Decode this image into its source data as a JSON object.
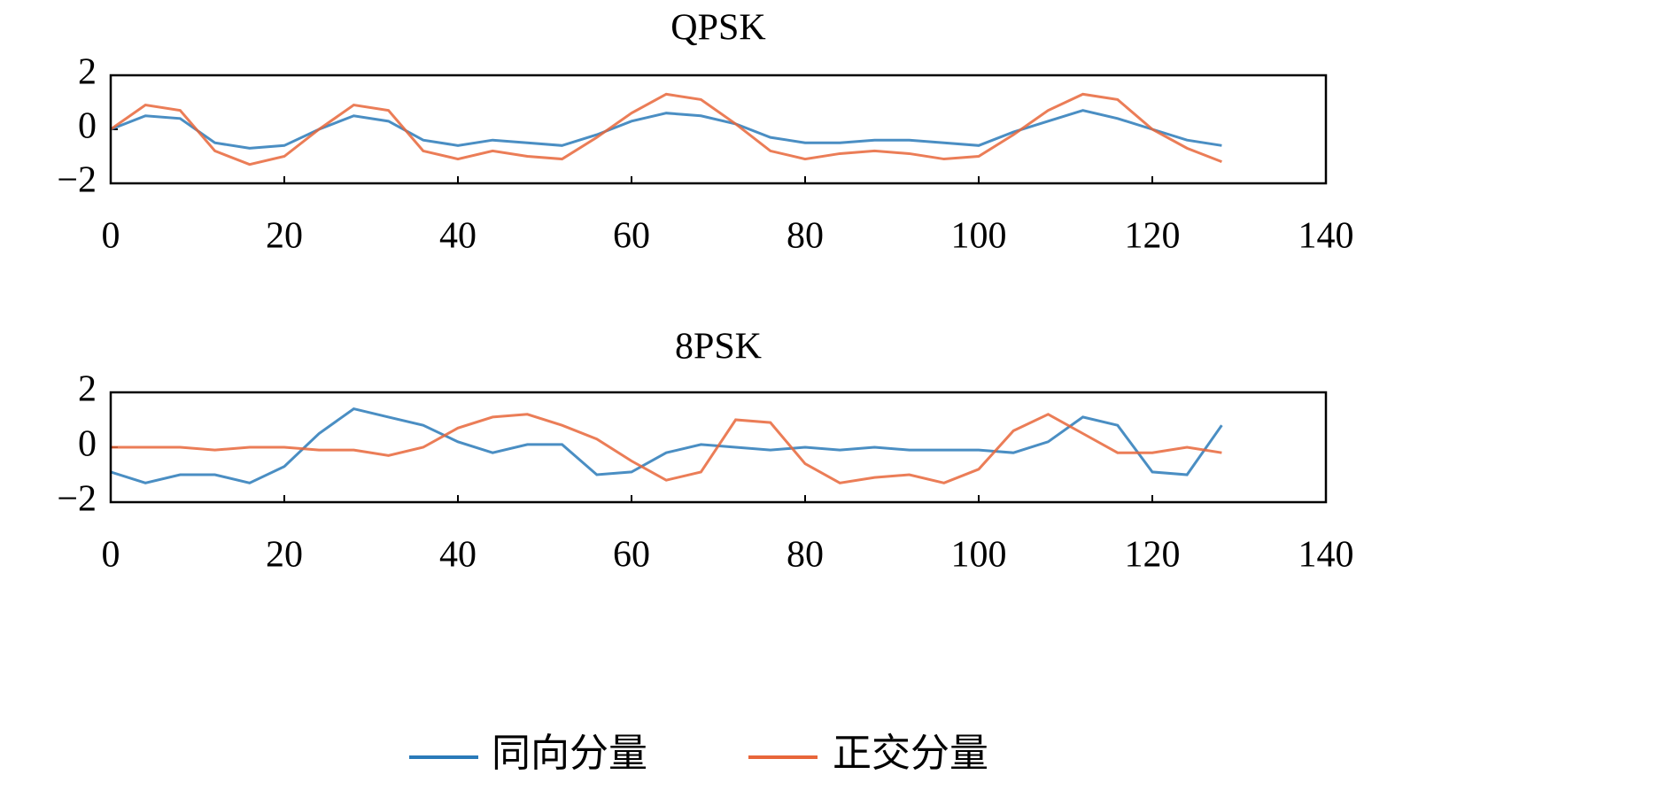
{
  "chart_data": [
    {
      "type": "line",
      "title": "QPSK",
      "x": [
        0,
        4,
        8,
        12,
        16,
        20,
        24,
        28,
        32,
        36,
        40,
        44,
        48,
        52,
        56,
        60,
        64,
        68,
        72,
        76,
        80,
        84,
        88,
        92,
        96,
        100,
        104,
        108,
        112,
        116,
        120,
        124,
        128
      ],
      "series": [
        {
          "name": "同向分量",
          "color": "#2a7ab9",
          "values": [
            0,
            0.5,
            0.4,
            -0.5,
            -0.7,
            -0.6,
            0.0,
            0.5,
            0.3,
            -0.4,
            -0.6,
            -0.4,
            -0.5,
            -0.6,
            -0.2,
            0.3,
            0.6,
            0.5,
            0.2,
            -0.3,
            -0.5,
            -0.5,
            -0.4,
            -0.4,
            -0.5,
            -0.6,
            -0.1,
            0.3,
            0.7,
            0.4,
            0.0,
            -0.4,
            -0.6
          ]
        },
        {
          "name": "正交分量",
          "color": "#e8663a",
          "values": [
            0,
            0.9,
            0.7,
            -0.8,
            -1.3,
            -1.0,
            0.0,
            0.9,
            0.7,
            -0.8,
            -1.1,
            -0.8,
            -1.0,
            -1.1,
            -0.3,
            0.6,
            1.3,
            1.1,
            0.2,
            -0.8,
            -1.1,
            -0.9,
            -0.8,
            -0.9,
            -1.1,
            -1.0,
            -0.2,
            0.7,
            1.3,
            1.1,
            0.0,
            -0.7,
            -1.2
          ]
        }
      ],
      "xlim": [
        0,
        140
      ],
      "xticks": [
        0,
        20,
        40,
        60,
        80,
        100,
        120,
        140
      ],
      "ylim": [
        -2,
        2
      ],
      "yticks": [
        {
          "value": -2,
          "label": "−2"
        },
        0,
        2
      ]
    },
    {
      "type": "line",
      "title": "8PSK",
      "x": [
        0,
        4,
        8,
        12,
        16,
        20,
        24,
        28,
        32,
        36,
        40,
        44,
        48,
        52,
        56,
        60,
        64,
        68,
        72,
        76,
        80,
        84,
        88,
        92,
        96,
        100,
        104,
        108,
        112,
        116,
        120,
        124,
        128
      ],
      "series": [
        {
          "color": "#2a7ab9",
          "values": [
            -0.9,
            -1.3,
            -1.0,
            -1.0,
            -1.3,
            -0.7,
            0.5,
            1.4,
            1.1,
            0.8,
            0.2,
            -0.2,
            0.1,
            0.1,
            -1.0,
            -0.9,
            -0.2,
            0.1,
            0.0,
            -0.1,
            0.0,
            -0.1,
            0.0,
            -0.1,
            -0.1,
            -0.1,
            -0.2,
            0.2,
            1.1,
            0.8,
            -0.9,
            -1.0,
            0.8
          ]
        },
        {
          "color": "#e8663a",
          "values": [
            0.0,
            0.0,
            0.0,
            -0.1,
            0.0,
            0.0,
            -0.1,
            -0.1,
            -0.3,
            0.0,
            0.7,
            1.1,
            1.2,
            0.8,
            0.3,
            -0.5,
            -1.2,
            -0.9,
            1.0,
            0.9,
            -0.6,
            -1.3,
            -1.1,
            -1.0,
            -1.3,
            -0.8,
            0.6,
            1.2,
            0.5,
            -0.2,
            -0.2,
            0.0,
            -0.2
          ]
        }
      ],
      "xlim": [
        0,
        140
      ],
      "xticks": [
        0,
        20,
        40,
        60,
        80,
        100,
        120,
        140
      ],
      "ylim": [
        -2,
        2
      ],
      "yticks": [
        {
          "value": -2,
          "label": "−2"
        },
        0,
        2
      ]
    }
  ]
}
